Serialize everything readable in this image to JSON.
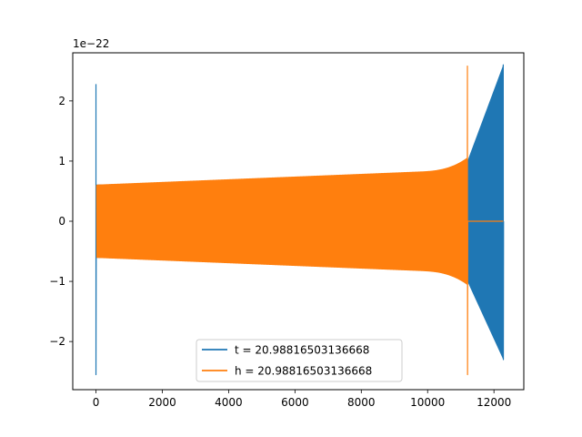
{
  "chart_data": {
    "type": "line",
    "x_ticks": [
      "0",
      "2000",
      "4000",
      "6000",
      "8000",
      "10000",
      "12000"
    ],
    "y_ticks": [
      "−2",
      "−1",
      "0",
      "1",
      "2"
    ],
    "y_offset_label": "1e−22",
    "xlim": [
      -700,
      12900
    ],
    "ylim": [
      -2.8,
      2.8
    ],
    "legend_position": "lower center",
    "series": [
      {
        "name": "t = 20.98816503136668",
        "color": "#1f77b4",
        "description_values": {
          "start_spike": {
            "x": 0,
            "min": -2.55,
            "max": 2.28
          },
          "amplitude_start": 0.6,
          "amplitude_mid": 0.75,
          "amplitude_near_end": 1.0,
          "merger_x": 12280,
          "merger_peak": [
            -2.3,
            2.6
          ],
          "x_end": 12280
        }
      },
      {
        "name": "h = 20.98816503136668",
        "color": "#ff7f0e",
        "description_values": {
          "amplitude_start": 0.6,
          "amplitude_at_8000": 0.85,
          "merger_x": 11200,
          "merger_peak": [
            -2.55,
            2.58
          ],
          "flat_after_merger_to": 12280
        }
      }
    ]
  }
}
